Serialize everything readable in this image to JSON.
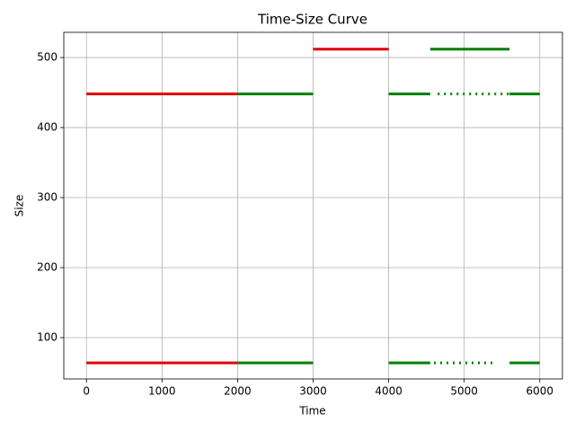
{
  "chart_data": {
    "type": "line",
    "title": "Time-Size Curve",
    "x_label": "Time",
    "y_label": "Size",
    "xlim": [
      -300,
      6300
    ],
    "ylim": [
      41,
      536
    ],
    "xticks": [
      0,
      1000,
      2000,
      3000,
      4000,
      5000,
      6000
    ],
    "yticks": [
      100,
      200,
      300,
      400,
      500
    ],
    "grid": true,
    "series": [
      {
        "color": "#e00000",
        "x": [
          0,
          2000
        ],
        "values": [
          448,
          448
        ]
      },
      {
        "color": "#e00000",
        "x": [
          0,
          2000
        ],
        "values": [
          64,
          64
        ]
      },
      {
        "color": "#e00000",
        "x": [
          3000,
          4000
        ],
        "values": [
          512,
          512
        ]
      },
      {
        "color": "#008000",
        "x": [
          2000,
          3000
        ],
        "values": [
          448,
          448
        ]
      },
      {
        "color": "#008000",
        "x": [
          2000,
          3000
        ],
        "values": [
          64,
          64
        ]
      },
      {
        "color": "#008000",
        "x": [
          4000,
          4550
        ],
        "values": [
          448,
          448
        ]
      },
      {
        "color": "#008000",
        "x": [
          4550,
          5600
        ],
        "values": [
          512,
          512
        ]
      },
      {
        "color": "#008000",
        "x": [
          4650,
          5600
        ],
        "values": [
          448,
          448
        ],
        "dashed": true
      },
      {
        "color": "#008000",
        "x": [
          5600,
          6000
        ],
        "values": [
          448,
          448
        ]
      },
      {
        "color": "#008000",
        "x": [
          4000,
          4550
        ],
        "values": [
          64,
          64
        ]
      },
      {
        "color": "#008000",
        "x": [
          4600,
          5400
        ],
        "values": [
          64,
          64
        ],
        "dashed": true
      },
      {
        "color": "#008000",
        "x": [
          5600,
          6000
        ],
        "values": [
          64,
          64
        ]
      }
    ]
  }
}
